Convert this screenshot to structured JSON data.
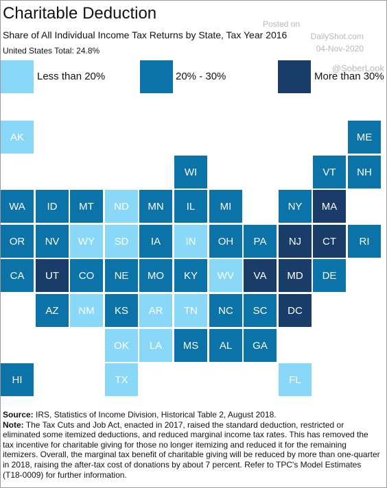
{
  "header": {
    "title": "Charitable Deduction",
    "subtitle": "Share of All Individual Income Tax Returns by State, Tax Year 2016",
    "total": "United States Total: 24.8%"
  },
  "watermark": {
    "posted": "Posted on",
    "site": "DailyShot.com",
    "date": "04-Nov-2020",
    "handle": "@SoberLook"
  },
  "colors": {
    "low": "#8ad8f8",
    "mid": "#0b73a8",
    "high": "#1a3c69"
  },
  "chart_data": {
    "type": "heatmap",
    "title": "Charitable Deduction",
    "subtitle": "Share of All Individual Income Tax Returns by State, Tax Year 2016",
    "legend": [
      {
        "key": "low",
        "label": "Less than 20%"
      },
      {
        "key": "mid",
        "label": "20% - 30%"
      },
      {
        "key": "high",
        "label": "More than 30%"
      }
    ],
    "states": [
      {
        "abbr": "AK",
        "row": 0,
        "col": 0,
        "bin": "low"
      },
      {
        "abbr": "ME",
        "row": 0,
        "col": 10,
        "bin": "mid"
      },
      {
        "abbr": "WI",
        "row": 1,
        "col": 5,
        "bin": "mid"
      },
      {
        "abbr": "VT",
        "row": 1,
        "col": 9,
        "bin": "mid"
      },
      {
        "abbr": "NH",
        "row": 1,
        "col": 10,
        "bin": "mid"
      },
      {
        "abbr": "WA",
        "row": 2,
        "col": 0,
        "bin": "mid"
      },
      {
        "abbr": "ID",
        "row": 2,
        "col": 1,
        "bin": "mid"
      },
      {
        "abbr": "MT",
        "row": 2,
        "col": 2,
        "bin": "mid"
      },
      {
        "abbr": "ND",
        "row": 2,
        "col": 3,
        "bin": "low"
      },
      {
        "abbr": "MN",
        "row": 2,
        "col": 4,
        "bin": "mid"
      },
      {
        "abbr": "IL",
        "row": 2,
        "col": 5,
        "bin": "mid"
      },
      {
        "abbr": "MI",
        "row": 2,
        "col": 6,
        "bin": "mid"
      },
      {
        "abbr": "NY",
        "row": 2,
        "col": 8,
        "bin": "mid"
      },
      {
        "abbr": "MA",
        "row": 2,
        "col": 9,
        "bin": "high"
      },
      {
        "abbr": "OR",
        "row": 3,
        "col": 0,
        "bin": "mid"
      },
      {
        "abbr": "NV",
        "row": 3,
        "col": 1,
        "bin": "mid"
      },
      {
        "abbr": "WY",
        "row": 3,
        "col": 2,
        "bin": "low"
      },
      {
        "abbr": "SD",
        "row": 3,
        "col": 3,
        "bin": "low"
      },
      {
        "abbr": "IA",
        "row": 3,
        "col": 4,
        "bin": "mid"
      },
      {
        "abbr": "IN",
        "row": 3,
        "col": 5,
        "bin": "low"
      },
      {
        "abbr": "OH",
        "row": 3,
        "col": 6,
        "bin": "mid"
      },
      {
        "abbr": "PA",
        "row": 3,
        "col": 7,
        "bin": "mid"
      },
      {
        "abbr": "NJ",
        "row": 3,
        "col": 8,
        "bin": "high"
      },
      {
        "abbr": "CT",
        "row": 3,
        "col": 9,
        "bin": "high"
      },
      {
        "abbr": "RI",
        "row": 3,
        "col": 10,
        "bin": "mid"
      },
      {
        "abbr": "CA",
        "row": 4,
        "col": 0,
        "bin": "mid"
      },
      {
        "abbr": "UT",
        "row": 4,
        "col": 1,
        "bin": "high"
      },
      {
        "abbr": "CO",
        "row": 4,
        "col": 2,
        "bin": "mid"
      },
      {
        "abbr": "NE",
        "row": 4,
        "col": 3,
        "bin": "mid"
      },
      {
        "abbr": "MO",
        "row": 4,
        "col": 4,
        "bin": "mid"
      },
      {
        "abbr": "KY",
        "row": 4,
        "col": 5,
        "bin": "mid"
      },
      {
        "abbr": "WV",
        "row": 4,
        "col": 6,
        "bin": "low"
      },
      {
        "abbr": "VA",
        "row": 4,
        "col": 7,
        "bin": "high"
      },
      {
        "abbr": "MD",
        "row": 4,
        "col": 8,
        "bin": "high"
      },
      {
        "abbr": "DE",
        "row": 4,
        "col": 9,
        "bin": "mid"
      },
      {
        "abbr": "AZ",
        "row": 5,
        "col": 1,
        "bin": "mid"
      },
      {
        "abbr": "NM",
        "row": 5,
        "col": 2,
        "bin": "low"
      },
      {
        "abbr": "KS",
        "row": 5,
        "col": 3,
        "bin": "mid"
      },
      {
        "abbr": "AR",
        "row": 5,
        "col": 4,
        "bin": "low"
      },
      {
        "abbr": "TN",
        "row": 5,
        "col": 5,
        "bin": "low"
      },
      {
        "abbr": "NC",
        "row": 5,
        "col": 6,
        "bin": "mid"
      },
      {
        "abbr": "SC",
        "row": 5,
        "col": 7,
        "bin": "mid"
      },
      {
        "abbr": "DC",
        "row": 5,
        "col": 8,
        "bin": "high"
      },
      {
        "abbr": "OK",
        "row": 6,
        "col": 3,
        "bin": "low"
      },
      {
        "abbr": "LA",
        "row": 6,
        "col": 4,
        "bin": "low"
      },
      {
        "abbr": "MS",
        "row": 6,
        "col": 5,
        "bin": "mid"
      },
      {
        "abbr": "AL",
        "row": 6,
        "col": 6,
        "bin": "mid"
      },
      {
        "abbr": "GA",
        "row": 6,
        "col": 7,
        "bin": "mid"
      },
      {
        "abbr": "HI",
        "row": 7,
        "col": 0,
        "bin": "mid"
      },
      {
        "abbr": "TX",
        "row": 7,
        "col": 3,
        "bin": "low"
      },
      {
        "abbr": "FL",
        "row": 7,
        "col": 8,
        "bin": "low"
      }
    ]
  },
  "footer": {
    "source_label": "Source:",
    "source_text": " IRS, Statistics of Income Division, Historical Table 2, August 2018.",
    "note_label": "Note:",
    "note_text": " The Tax Cuts and Job Act, enacted in 2017, raised the standard deduction, restricted or eliminated some itemized deductions, and reduced marginal income tax rates. This has removed the tax incentive for charitable giving for those no longer itemizing and reduced it for the remaining itemizers. Overall, the marginal tax benefit of charitable giving will be reduced by more than one-quarter in 2018, raising the after-tax cost of donations by about 7 percent. Refer to TPC's Model Estimates (T18-0009) for further information."
  }
}
